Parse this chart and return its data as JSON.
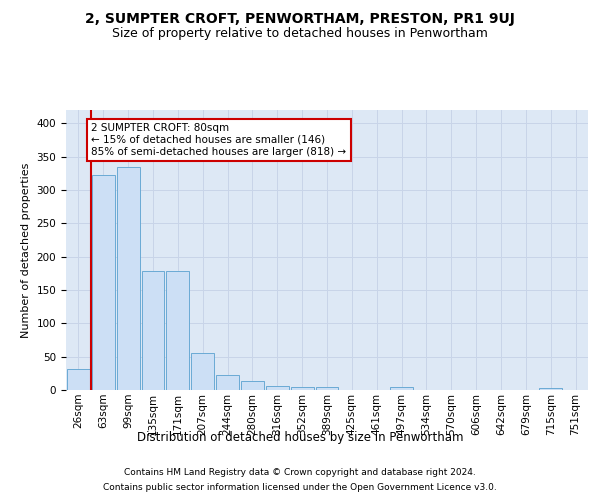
{
  "title1": "2, SUMPTER CROFT, PENWORTHAM, PRESTON, PR1 9UJ",
  "title2": "Size of property relative to detached houses in Penwortham",
  "xlabel": "Distribution of detached houses by size in Penwortham",
  "ylabel": "Number of detached properties",
  "footer1": "Contains HM Land Registry data © Crown copyright and database right 2024.",
  "footer2": "Contains public sector information licensed under the Open Government Licence v3.0.",
  "bin_labels": [
    "26sqm",
    "63sqm",
    "99sqm",
    "135sqm",
    "171sqm",
    "207sqm",
    "244sqm",
    "280sqm",
    "316sqm",
    "352sqm",
    "389sqm",
    "425sqm",
    "461sqm",
    "497sqm",
    "534sqm",
    "570sqm",
    "606sqm",
    "642sqm",
    "679sqm",
    "715sqm",
    "751sqm"
  ],
  "bar_values": [
    32,
    323,
    334,
    178,
    178,
    55,
    22,
    14,
    6,
    5,
    5,
    0,
    0,
    4,
    0,
    0,
    0,
    0,
    0,
    3,
    0
  ],
  "bar_color": "#ccdff5",
  "bar_edge_color": "#6aaad4",
  "red_line_x": 1.5,
  "red_line_color": "#cc0000",
  "annotation_text": "2 SUMPTER CROFT: 80sqm\n← 15% of detached houses are smaller (146)\n85% of semi-detached houses are larger (818) →",
  "annotation_box_color": "#ffffff",
  "annotation_box_edge": "#cc0000",
  "ylim": [
    0,
    420
  ],
  "yticks": [
    0,
    50,
    100,
    150,
    200,
    250,
    300,
    350,
    400
  ],
  "grid_color": "#c8d4e8",
  "background_color": "#dde8f5",
  "title1_fontsize": 10,
  "title2_fontsize": 9,
  "xlabel_fontsize": 8.5,
  "ylabel_fontsize": 8,
  "tick_fontsize": 7.5,
  "annot_fontsize": 7.5,
  "footer_fontsize": 6.5
}
